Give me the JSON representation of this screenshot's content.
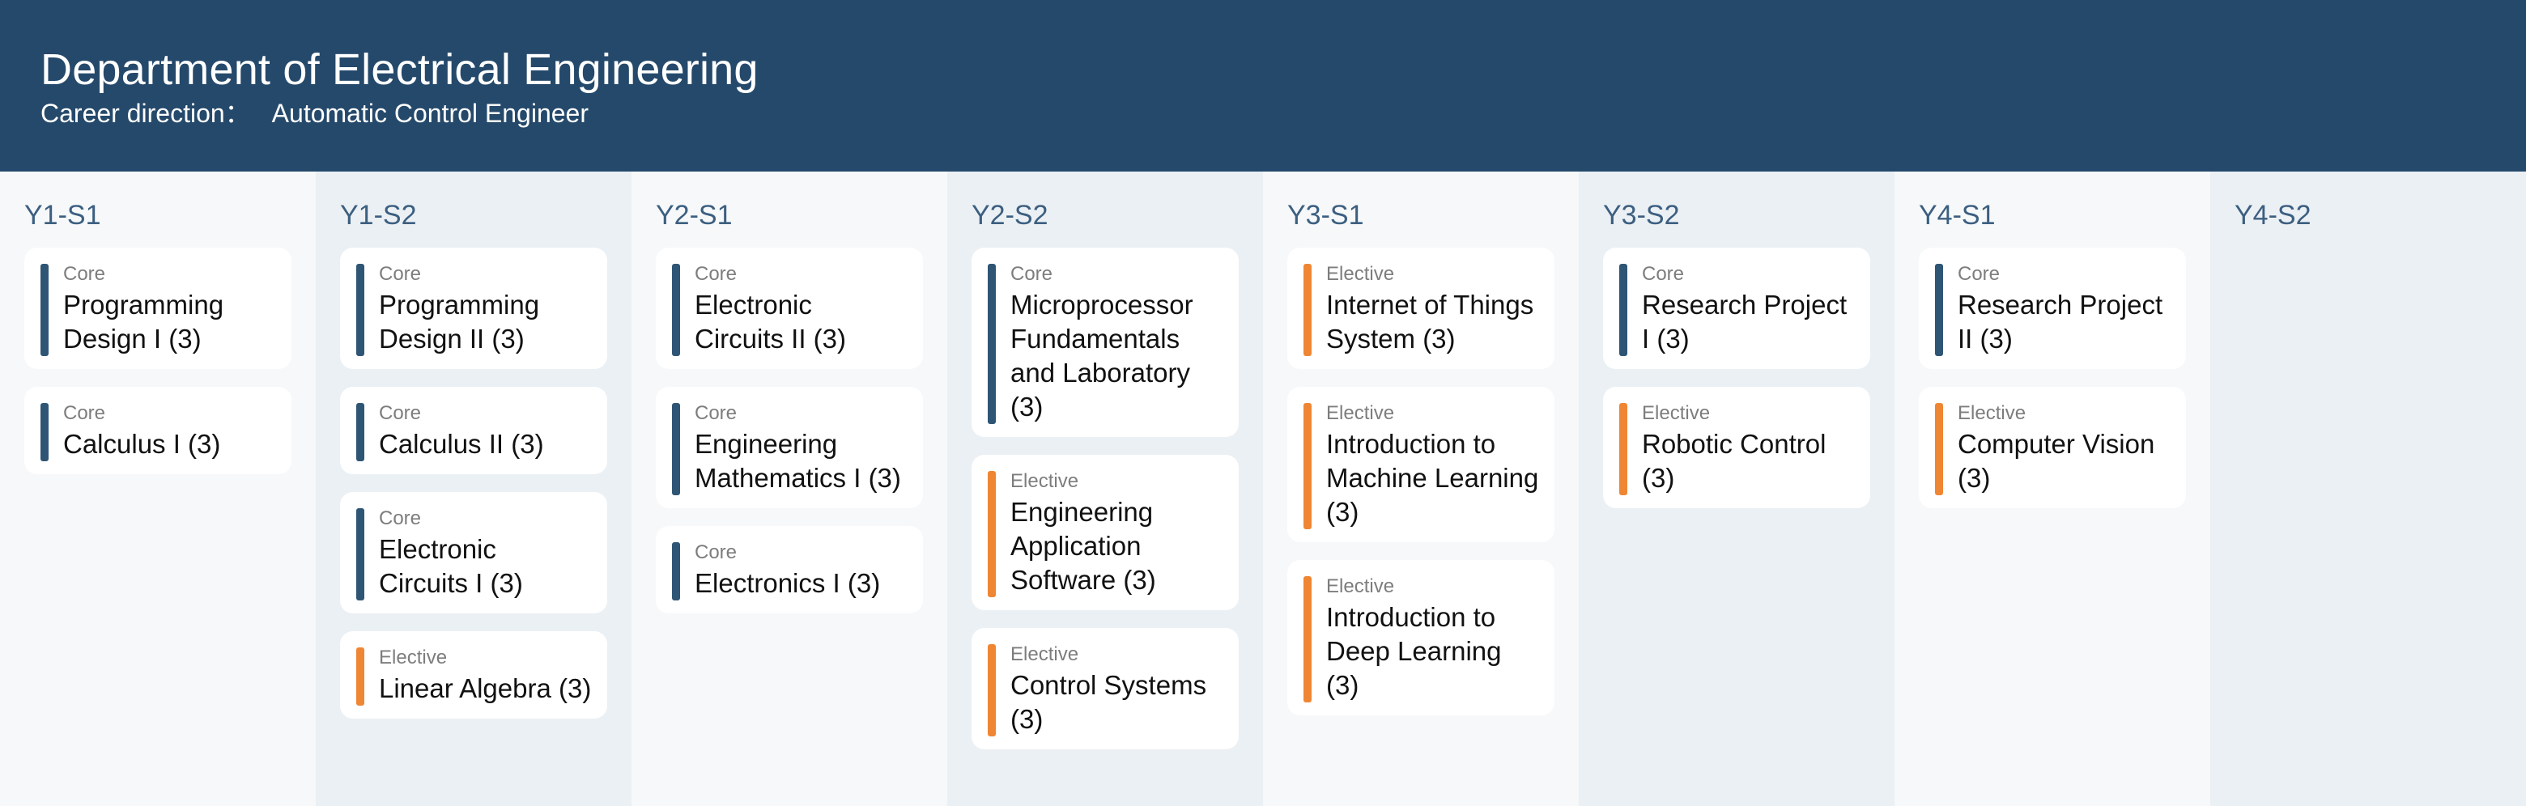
{
  "header": {
    "title": "Department of Electrical Engineering",
    "subtitle_label": "Career direction：",
    "subtitle_value": "Automatic Control Engineer"
  },
  "colors": {
    "header_bg": "#25496b",
    "core_bar": "#2f5575",
    "elective_bar": "#ef8633",
    "semester_label": "#3c5f80"
  },
  "semesters": [
    {
      "label": "Y1-S1",
      "courses": [
        {
          "type": "Core",
          "title": "Programming Design I (3)"
        },
        {
          "type": "Core",
          "title": "Calculus I (3)"
        }
      ]
    },
    {
      "label": "Y1-S2",
      "courses": [
        {
          "type": "Core",
          "title": "Programming Design II (3)"
        },
        {
          "type": "Core",
          "title": "Calculus II (3)"
        },
        {
          "type": "Core",
          "title": "Electronic Circuits I (3)"
        },
        {
          "type": "Elective",
          "title": "Linear Algebra (3)"
        }
      ]
    },
    {
      "label": "Y2-S1",
      "courses": [
        {
          "type": "Core",
          "title": "Electronic Circuits II (3)"
        },
        {
          "type": "Core",
          "title": "Engineering Mathematics I (3)"
        },
        {
          "type": "Core",
          "title": "Electronics I (3)"
        }
      ]
    },
    {
      "label": "Y2-S2",
      "courses": [
        {
          "type": "Core",
          "title": "Microprocessor Fundamentals and Laboratory (3)"
        },
        {
          "type": "Elective",
          "title": "Engineering Application Software (3)"
        },
        {
          "type": "Elective",
          "title": "Control Systems (3)"
        }
      ]
    },
    {
      "label": "Y3-S1",
      "courses": [
        {
          "type": "Elective",
          "title": "Internet of Things System (3)"
        },
        {
          "type": "Elective",
          "title": "Introduction to Machine Learning (3)"
        },
        {
          "type": "Elective",
          "title": "Introduction to Deep Learning (3)"
        }
      ]
    },
    {
      "label": "Y3-S2",
      "courses": [
        {
          "type": "Core",
          "title": "Research Project I (3)"
        },
        {
          "type": "Elective",
          "title": "Robotic Control (3)"
        }
      ]
    },
    {
      "label": "Y4-S1",
      "courses": [
        {
          "type": "Core",
          "title": "Research Project II (3)"
        },
        {
          "type": "Elective",
          "title": "Computer Vision (3)"
        }
      ]
    },
    {
      "label": "Y4-S2",
      "courses": []
    }
  ]
}
